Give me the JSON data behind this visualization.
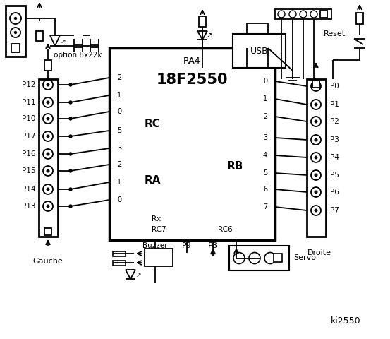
{
  "bg_color": "#ffffff",
  "line_color": "#000000",
  "title": "ki2550",
  "chip_label": "18F2550",
  "chip_sublabel": "RA4",
  "left_connector_label": "Gauche",
  "right_connector_label": "Droite",
  "left_pins": [
    "P12",
    "P11",
    "P10",
    "P17",
    "P16",
    "P15",
    "P14",
    "P13"
  ],
  "right_pins": [
    "P0",
    "P1",
    "P2",
    "P3",
    "P4",
    "P5",
    "P6",
    "P7"
  ],
  "rc_pins": [
    "2",
    "1",
    "0",
    "5",
    "3",
    "2",
    "1",
    "0"
  ],
  "rb_pins": [
    "0",
    "1",
    "2",
    "3",
    "4",
    "5",
    "6",
    "7"
  ],
  "rc_label": "RC",
  "ra_label": "RA",
  "rb_label": "RB",
  "buzzer_label": "Buzzer",
  "p9_label": "P9",
  "p8_label": "P8",
  "servo_label": "Servo",
  "option_label": "option 8x22k",
  "reset_label": "Reset",
  "usb_label": "USB",
  "rx_label": "Rx",
  "rc7_label": "RC7",
  "rc6_label": "RC6"
}
